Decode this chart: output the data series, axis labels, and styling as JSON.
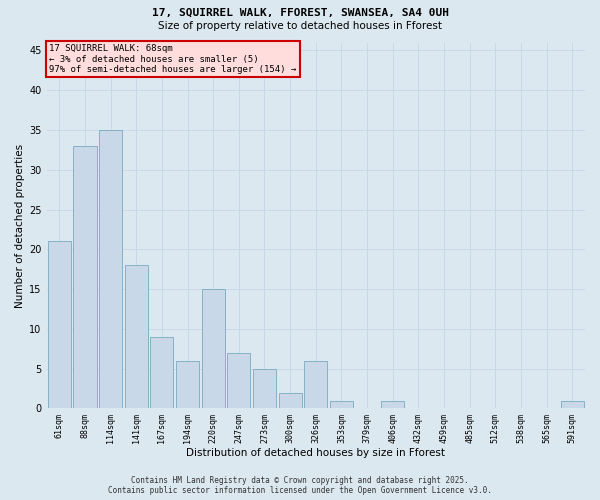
{
  "title_line1": "17, SQUIRREL WALK, FFOREST, SWANSEA, SA4 0UH",
  "title_line2": "Size of property relative to detached houses in Fforest",
  "xlabel": "Distribution of detached houses by size in Fforest",
  "ylabel": "Number of detached properties",
  "categories": [
    "61sqm",
    "88sqm",
    "114sqm",
    "141sqm",
    "167sqm",
    "194sqm",
    "220sqm",
    "247sqm",
    "273sqm",
    "300sqm",
    "326sqm",
    "353sqm",
    "379sqm",
    "406sqm",
    "432sqm",
    "459sqm",
    "485sqm",
    "512sqm",
    "538sqm",
    "565sqm",
    "591sqm"
  ],
  "values": [
    21,
    33,
    35,
    18,
    9,
    6,
    15,
    7,
    5,
    2,
    6,
    1,
    0,
    1,
    0,
    0,
    0,
    0,
    0,
    0,
    1
  ],
  "bar_color": "#c8d8e8",
  "bar_edge_color": "#7aaabf",
  "annotation_box_text": "17 SQUIRREL WALK: 68sqm\n← 3% of detached houses are smaller (5)\n97% of semi-detached houses are larger (154) →",
  "annotation_box_color": "#ffdddd",
  "annotation_box_edge_color": "#cc0000",
  "grid_color": "#c8d8e8",
  "background_color": "#dce8f0",
  "ylim": [
    0,
    46
  ],
  "yticks": [
    0,
    5,
    10,
    15,
    20,
    25,
    30,
    35,
    40,
    45
  ],
  "footer_line1": "Contains HM Land Registry data © Crown copyright and database right 2025.",
  "footer_line2": "Contains public sector information licensed under the Open Government Licence v3.0."
}
